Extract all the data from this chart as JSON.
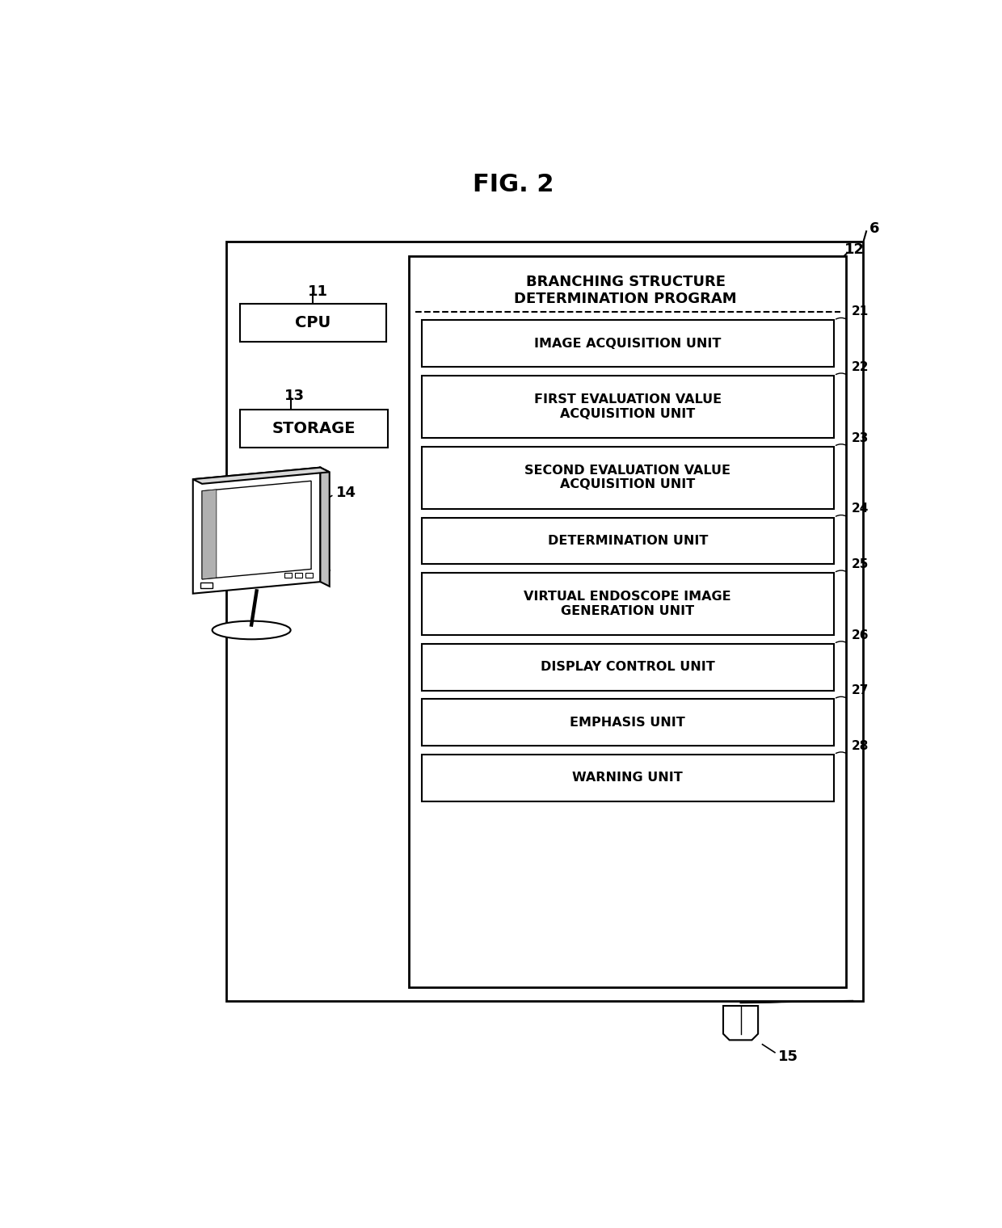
{
  "title": "FIG. 2",
  "fig_width": 12.4,
  "fig_height": 15.2,
  "bg_color": "#ffffff",
  "label_6": "6",
  "label_11": "11",
  "label_12": "12",
  "label_13": "13",
  "label_14": "14",
  "label_15": "15",
  "program_label": "BRANCHING STRUCTURE\nDETERMINATION PROGRAM",
  "cpu_label": "CPU",
  "storage_label": "STORAGE",
  "units": [
    {
      "label": "IMAGE ACQUISITION UNIT",
      "num": "21",
      "double": false
    },
    {
      "label": "FIRST EVALUATION VALUE\nACQUISITION UNIT",
      "num": "22",
      "double": true
    },
    {
      "label": "SECOND EVALUATION VALUE\nACQUISITION UNIT",
      "num": "23",
      "double": true
    },
    {
      "label": "DETERMINATION UNIT",
      "num": "24",
      "double": false
    },
    {
      "label": "VIRTUAL ENDOSCOPE IMAGE\nGENERATION UNIT",
      "num": "25",
      "double": true
    },
    {
      "label": "DISPLAY CONTROL UNIT",
      "num": "26",
      "double": false
    },
    {
      "label": "EMPHASIS UNIT",
      "num": "27",
      "double": false
    },
    {
      "label": "WARNING UNIT",
      "num": "28",
      "double": false
    }
  ]
}
